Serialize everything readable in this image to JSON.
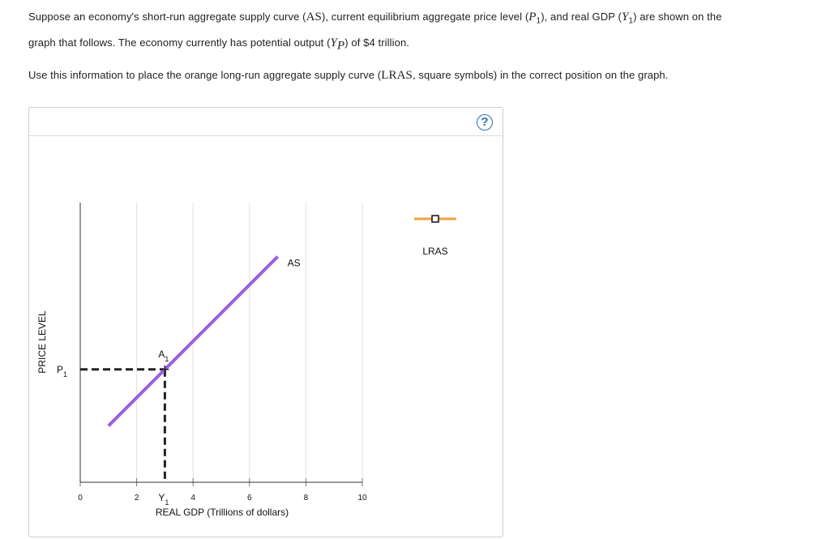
{
  "question": {
    "p1": [
      "Suppose an economy's short-run aggregate supply curve (",
      "AS",
      "), current equilibrium aggregate price level (",
      "P",
      "1",
      "), and real GDP (",
      "Y",
      "1",
      ") are shown on the",
      "graph that follows. The economy currently has potential output (",
      "Y",
      "P",
      ") of $4 trillion."
    ],
    "p2": [
      "Use this information to place the orange long-run aggregate supply curve (",
      "LRAS",
      ", square symbols) in the correct position on the graph."
    ]
  },
  "help_icon": "?",
  "chart_data": {
    "type": "line",
    "x_label": "REAL GDP (Trillions of dollars)",
    "y_label": "PRICE LEVEL",
    "xlim": [
      0,
      10
    ],
    "xticks": [
      0,
      2,
      4,
      6,
      8,
      10
    ],
    "ylim": [
      0,
      10
    ],
    "grid": true,
    "series": [
      {
        "name": "AS",
        "color": "#9b5fe0",
        "x": [
          1,
          7
        ],
        "values": [
          2,
          8
        ]
      }
    ],
    "point": {
      "label": "A",
      "sub": "1",
      "x": 3,
      "y": 4
    },
    "y_marker": {
      "label": "P",
      "sub": "1",
      "value": 4
    },
    "x_marker": {
      "label": "Y",
      "sub": "1",
      "value": 3
    },
    "legend": {
      "name": "LRAS",
      "color": "#eea33a"
    }
  }
}
